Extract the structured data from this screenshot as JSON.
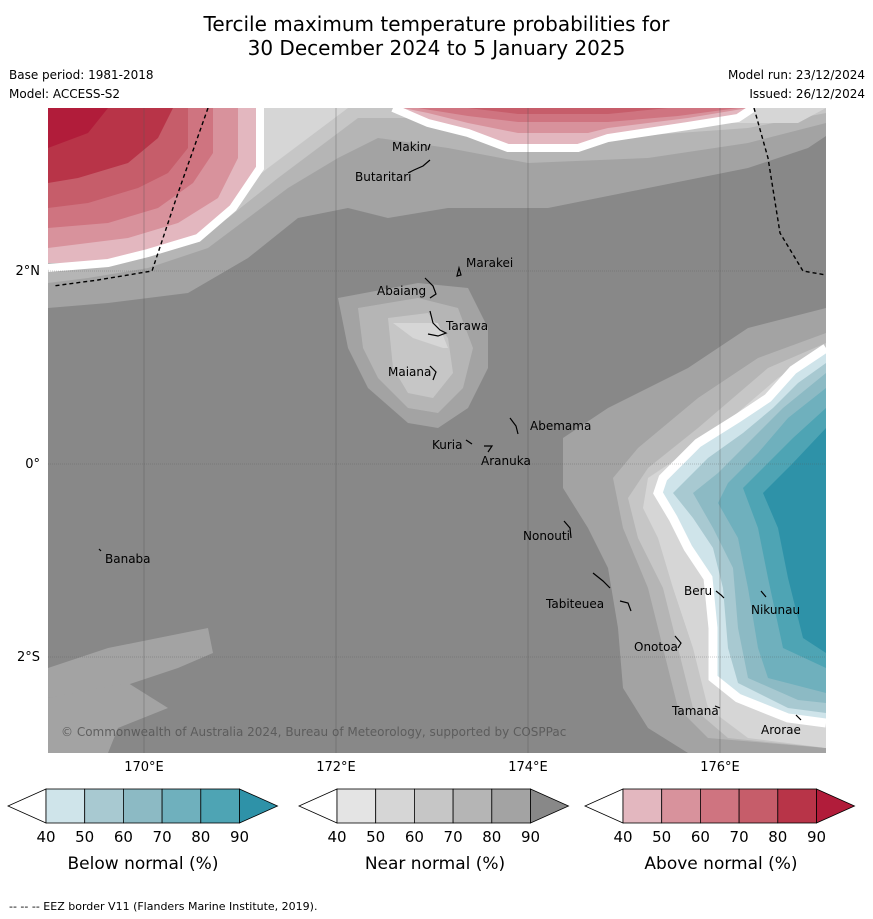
{
  "title_line1": "Tercile maximum temperature probabilities for",
  "title_line2": "30 December 2024 to 5 January 2025",
  "meta": {
    "base_period": "Base period: 1981-2018",
    "model": "Model: ACCESS-S2",
    "model_run": "Model run: 23/12/2024",
    "issued": "Issued: 26/12/2024"
  },
  "lat_labels": [
    "2°N",
    "0°",
    "2°S"
  ],
  "lon_labels": [
    "170°E",
    "172°E",
    "174°E",
    "176°E"
  ],
  "places": [
    "Makin",
    "Butaritari",
    "Marakei",
    "Abaiang",
    "Tarawa",
    "Maiana",
    "Abemama",
    "Kuria",
    "Aranuka",
    "Banaba",
    "Nonouti",
    "Tabiteuea",
    "Beru",
    "Nikunau",
    "Onotoa",
    "Tamana",
    "Arorae"
  ],
  "copyright": "© Commonwealth of Australia 2024, Bureau of Meteorology, supported by COSPPac",
  "colorbars": [
    {
      "title": "Below normal (%)",
      "ticks": [
        "40",
        "50",
        "60",
        "70",
        "80",
        "90"
      ],
      "colors": [
        "#cfe4ea",
        "#a8c9d1",
        "#8cbac4",
        "#6fb0bd",
        "#4ea4b4",
        "#2e92a8"
      ]
    },
    {
      "title": "Near normal (%)",
      "ticks": [
        "40",
        "50",
        "60",
        "70",
        "80",
        "90"
      ],
      "colors": [
        "#e4e4e4",
        "#d6d6d6",
        "#c6c6c6",
        "#b5b5b5",
        "#a3a3a3",
        "#888888"
      ]
    },
    {
      "title": "Above normal (%)",
      "ticks": [
        "40",
        "50",
        "60",
        "70",
        "80",
        "90"
      ],
      "colors": [
        "#e3b7bf",
        "#d8929c",
        "#cf7480",
        "#c65d6a",
        "#b83448",
        "#b11c3a"
      ]
    }
  ],
  "footer": "--  --  -- EEZ border V11 (Flanders Marine Institute, 2019)."
}
